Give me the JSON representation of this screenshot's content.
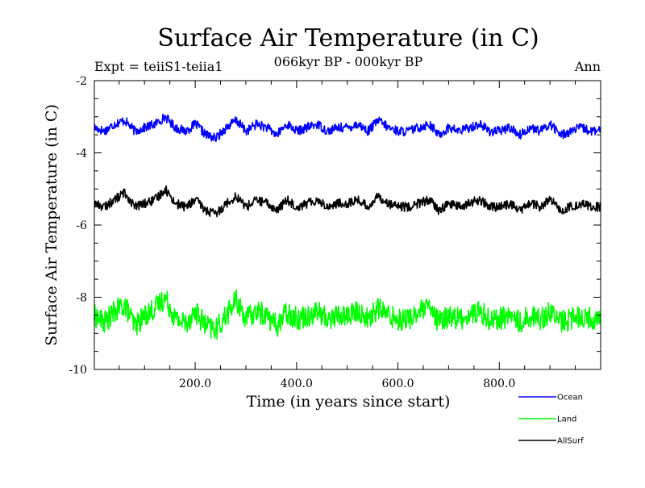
{
  "chart_data": {
    "type": "line",
    "title": "Surface Air Temperature (in C)",
    "subtitle": "066kyr BP - 000kyr BP",
    "experiment_label": "Expt = teiiS1-teiia1",
    "season_label": "Ann",
    "xlabel": "Time (in years since start)",
    "ylabel": "Surface Air Temperature (in C)",
    "xlim": [
      1,
      1000
    ],
    "ylim": [
      -10,
      -2
    ],
    "x_ticks": [
      200,
      400,
      600,
      800
    ],
    "x_tick_labels": [
      "200.0",
      "400.0",
      "600.0",
      "800.0"
    ],
    "y_ticks": [
      -10,
      -8,
      -6,
      -4,
      -2
    ],
    "y_tick_labels": [
      "-10",
      "-8",
      "-6",
      "-4",
      "-2"
    ],
    "grid": false,
    "legend_position": "bottom-right",
    "x_step": 20,
    "series": [
      {
        "name": "Ocean",
        "color": "#0000ff",
        "mean": -3.35,
        "values": [
          -3.3,
          -3.4,
          -3.2,
          -3.1,
          -3.4,
          -3.3,
          -3.2,
          -3.0,
          -3.3,
          -3.4,
          -3.2,
          -3.5,
          -3.6,
          -3.3,
          -3.1,
          -3.4,
          -3.2,
          -3.3,
          -3.5,
          -3.2,
          -3.4,
          -3.3,
          -3.2,
          -3.4,
          -3.3,
          -3.3,
          -3.2,
          -3.4,
          -3.1,
          -3.3,
          -3.4,
          -3.4,
          -3.3,
          -3.2,
          -3.5,
          -3.3,
          -3.4,
          -3.3,
          -3.2,
          -3.4,
          -3.4,
          -3.3,
          -3.5,
          -3.3,
          -3.4,
          -3.2,
          -3.5,
          -3.4,
          -3.3,
          -3.4
        ]
      },
      {
        "name": "Land",
        "color": "#00ff00",
        "mean": -8.5,
        "values": [
          -8.5,
          -8.7,
          -8.4,
          -8.2,
          -8.8,
          -8.5,
          -8.3,
          -8.0,
          -8.6,
          -8.7,
          -8.4,
          -8.8,
          -8.9,
          -8.5,
          -8.1,
          -8.6,
          -8.4,
          -8.5,
          -8.8,
          -8.4,
          -8.6,
          -8.5,
          -8.4,
          -8.6,
          -8.5,
          -8.5,
          -8.4,
          -8.6,
          -8.3,
          -8.5,
          -8.6,
          -8.6,
          -8.4,
          -8.3,
          -8.7,
          -8.5,
          -8.6,
          -8.5,
          -8.4,
          -8.6,
          -8.6,
          -8.5,
          -8.7,
          -8.5,
          -8.6,
          -8.4,
          -8.7,
          -8.6,
          -8.5,
          -8.6
        ]
      },
      {
        "name": "AllSurf",
        "color": "#000000",
        "mean": -5.4,
        "values": [
          -5.4,
          -5.5,
          -5.3,
          -5.1,
          -5.5,
          -5.4,
          -5.3,
          -5.0,
          -5.4,
          -5.5,
          -5.3,
          -5.6,
          -5.7,
          -5.4,
          -5.2,
          -5.5,
          -5.3,
          -5.4,
          -5.6,
          -5.3,
          -5.5,
          -5.4,
          -5.3,
          -5.5,
          -5.4,
          -5.4,
          -5.3,
          -5.5,
          -5.2,
          -5.4,
          -5.5,
          -5.5,
          -5.4,
          -5.3,
          -5.6,
          -5.4,
          -5.5,
          -5.4,
          -5.3,
          -5.5,
          -5.5,
          -5.4,
          -5.6,
          -5.4,
          -5.5,
          -5.3,
          -5.6,
          -5.5,
          -5.4,
          -5.5
        ]
      }
    ]
  }
}
